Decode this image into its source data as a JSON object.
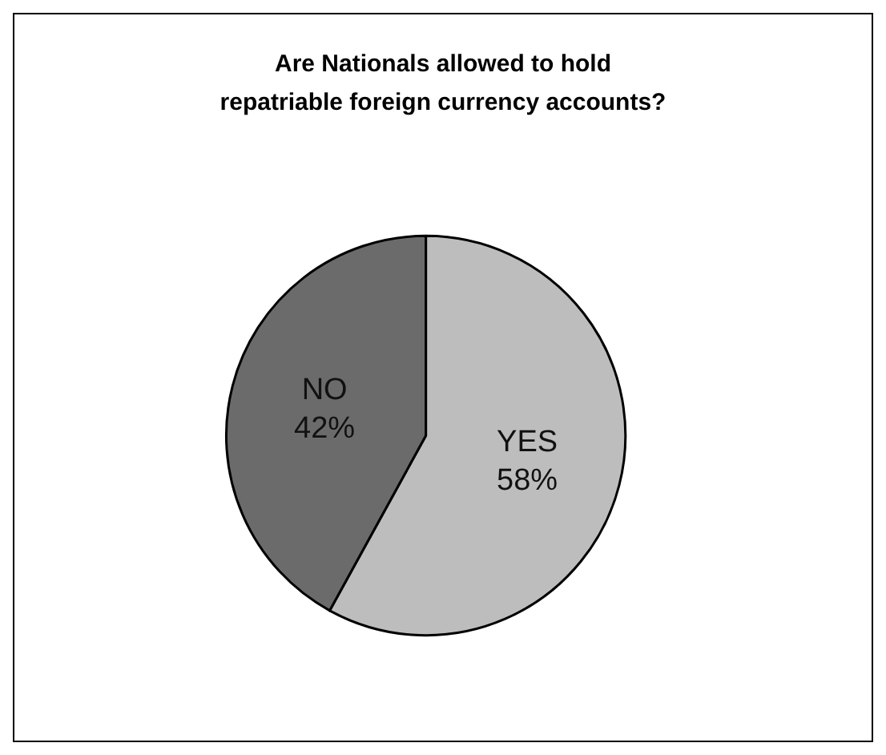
{
  "chart_data": {
    "type": "pie",
    "title": "Are Nationals allowed to hold\nrepatriable foreign currency accounts?",
    "categories": [
      "YES",
      "NO"
    ],
    "values": [
      58,
      42
    ],
    "colors": [
      "#bdbdbd",
      "#6b6b6b"
    ],
    "value_labels": [
      "58%",
      "42%"
    ],
    "legend": false
  }
}
